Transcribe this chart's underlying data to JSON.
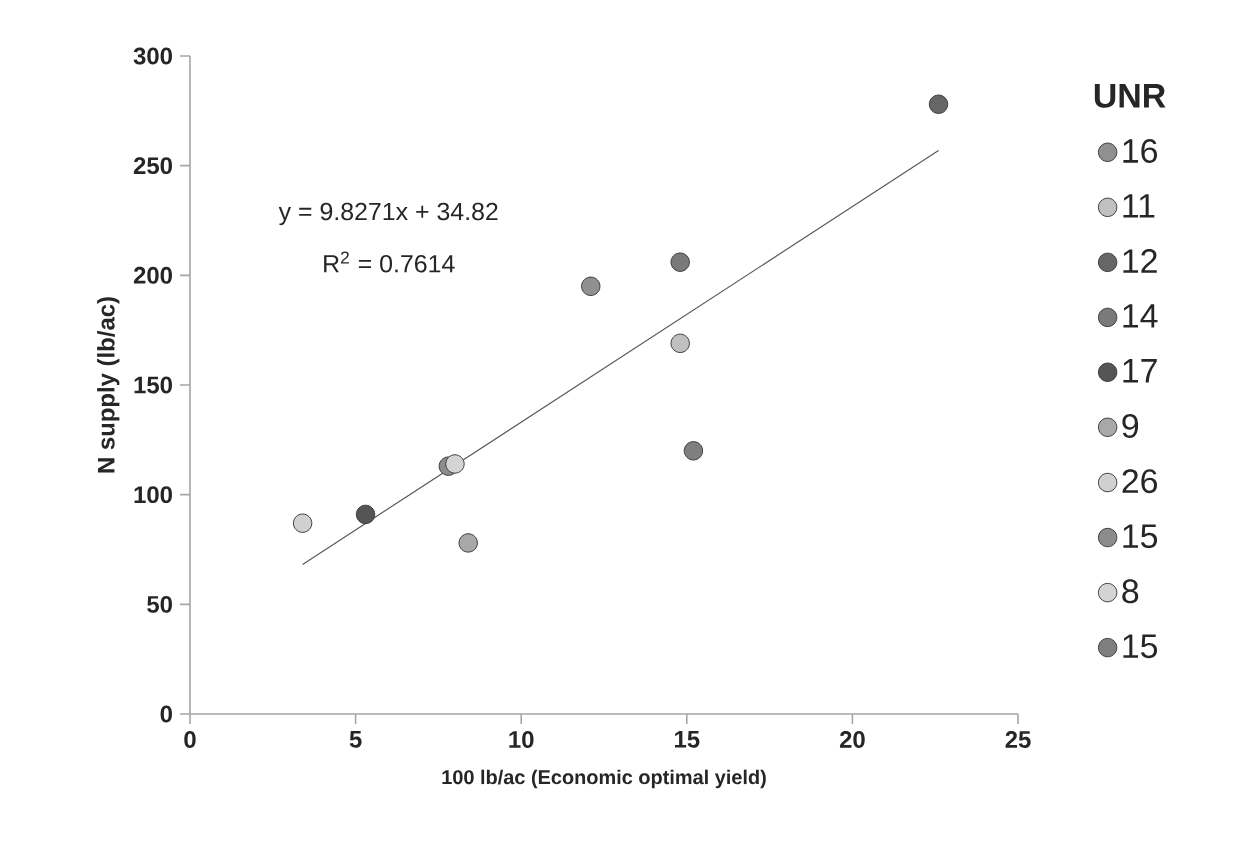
{
  "chart_data": {
    "type": "scatter",
    "xlabel": "100 lb/ac (Economic optimal yield)",
    "ylabel": "N supply (lb/ac)",
    "legend_title": "UNR",
    "xlim": [
      0,
      25
    ],
    "xticks": [
      0,
      5,
      10,
      15,
      20,
      25
    ],
    "ylim": [
      0,
      300
    ],
    "yticks": [
      0,
      50,
      100,
      150,
      200,
      250,
      300
    ],
    "legend": "right",
    "grid": false,
    "annotations": [
      "y = 9.8271x + 34.82",
      "R$^{2}$ = 0.7614"
    ],
    "series": [
      {
        "name": "16",
        "marker": "circle",
        "color": "#909090",
        "x": [
          12.1
        ],
        "values": [
          195
        ]
      },
      {
        "name": "11",
        "marker": "circle",
        "color": "#c0c0c0",
        "x": [
          14.8
        ],
        "values": [
          169
        ]
      },
      {
        "name": "12",
        "marker": "circle",
        "color": "#666666",
        "x": [
          22.6
        ],
        "values": [
          278
        ]
      },
      {
        "name": "14",
        "marker": "circle",
        "color": "#7a7a7a",
        "x": [
          14.8
        ],
        "values": [
          206
        ]
      },
      {
        "name": "17",
        "marker": "circle",
        "color": "#555555",
        "x": [
          5.3
        ],
        "values": [
          91
        ]
      },
      {
        "name": "9",
        "marker": "circle",
        "color": "#a8a8a8",
        "x": [
          8.4
        ],
        "values": [
          78
        ]
      },
      {
        "name": "26",
        "marker": "circle",
        "color": "#d0d0d0",
        "x": [
          3.4
        ],
        "values": [
          87
        ]
      },
      {
        "name": "15",
        "marker": "circle",
        "color": "#8c8c8c",
        "x": [
          7.8
        ],
        "values": [
          113
        ]
      },
      {
        "name": "8",
        "marker": "circle",
        "color": "#d4d4d4",
        "x": [
          8.0
        ],
        "values": [
          114
        ]
      },
      {
        "name": "15",
        "marker": "circle",
        "color": "#7f7f7f",
        "x": [
          15.2
        ],
        "values": [
          120
        ]
      },
      {
        "type": "line",
        "marker": "none",
        "color": "#595959",
        "x": [
          3.4,
          22.6
        ],
        "values": [
          68.2,
          256.9
        ]
      }
    ]
  }
}
